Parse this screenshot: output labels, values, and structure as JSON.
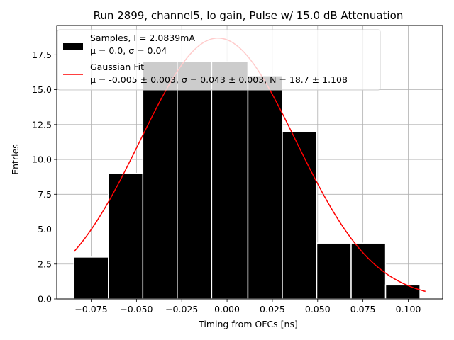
{
  "chart_data": {
    "type": "bar",
    "title": "Run 2899, channel5, lo gain, Pulse w/ 15.0 dB Attenuation",
    "xlabel": "Timing from OFCs [ns]",
    "ylabel": "Entries",
    "xlim": [
      -0.094,
      0.119
    ],
    "ylim": [
      0,
      19.6
    ],
    "grid": true,
    "legend_position": "top-left",
    "x_ticks": [
      -0.075,
      -0.05,
      -0.025,
      0.0,
      0.025,
      0.05,
      0.075,
      0.1
    ],
    "x_tick_labels": [
      "−0.075",
      "−0.050",
      "−0.025",
      "0.000",
      "0.025",
      "0.050",
      "0.075",
      "0.100"
    ],
    "y_ticks": [
      0,
      2.5,
      5,
      7.5,
      10,
      12.5,
      15,
      17.5
    ],
    "y_tick_labels": [
      "0.0",
      "2.5",
      "5.0",
      "7.5",
      "10.0",
      "12.5",
      "15.0",
      "17.5"
    ],
    "histogram": {
      "name": "Samples",
      "bin_edges": [
        -0.0845,
        -0.0655,
        -0.0465,
        -0.0275,
        -0.0085,
        0.0115,
        0.0305,
        0.0495,
        0.0685,
        0.0875,
        0.1065
      ],
      "counts": [
        3,
        9,
        17,
        17,
        17,
        16,
        12,
        4,
        4,
        1
      ],
      "color": "#000000"
    },
    "fit": {
      "name": "Gaussian Fit",
      "mu": -0.005,
      "sigma": 0.043,
      "N": 18.7,
      "x_range": [
        -0.0845,
        0.1095
      ],
      "color": "#ff0000"
    },
    "legend": [
      {
        "line1": "Samples, I = 2.0839mA",
        "line2": "μ = 0.0, σ = 0.04",
        "swatch": "patch"
      },
      {
        "line1": "Gaussian Fit",
        "line2": "μ = -0.005 ± 0.003, σ = 0.043 ± 0.003, N = 18.7 ± 1.108",
        "swatch": "line"
      }
    ]
  }
}
